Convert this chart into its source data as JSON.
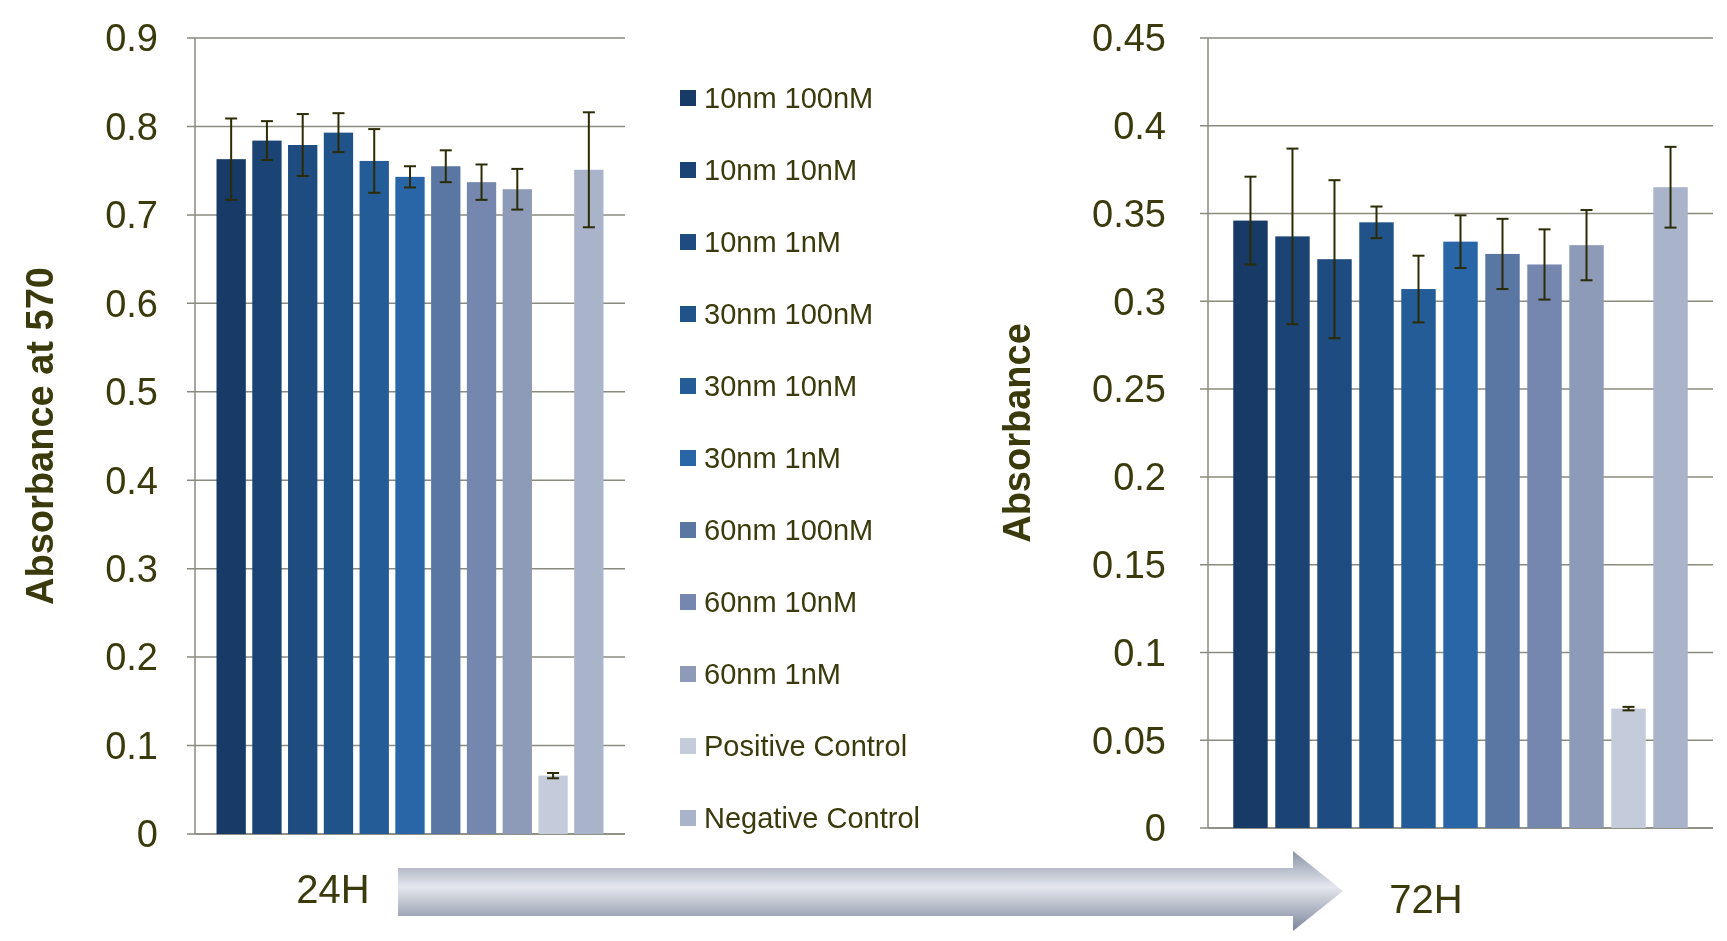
{
  "chart_data": [
    {
      "type": "bar",
      "ylabel": "Absorbance at 570",
      "xlabel": "24H",
      "categories": [
        null
      ],
      "ylim": [
        0,
        0.9
      ],
      "yticks": [
        0,
        0.1,
        0.2,
        0.3,
        0.4,
        0.5,
        0.6,
        0.7,
        0.8,
        0.9
      ],
      "grid": "y",
      "legend": "right",
      "series": [
        {
          "name": "10nm 100nM",
          "color": "#173b66",
          "values": [
            0.763
          ],
          "errors": [
            0.046
          ]
        },
        {
          "name": "10nm 10nM",
          "color": "#1b4474",
          "values": [
            0.784
          ],
          "errors": [
            0.022
          ]
        },
        {
          "name": "10nm 1nM",
          "color": "#1e4b80",
          "values": [
            0.779
          ],
          "errors": [
            0.035
          ]
        },
        {
          "name": "30nm 100nM",
          "color": "#21538b",
          "values": [
            0.793
          ],
          "errors": [
            0.022
          ]
        },
        {
          "name": "30nm 10nM",
          "color": "#245c98",
          "values": [
            0.761
          ],
          "errors": [
            0.036
          ]
        },
        {
          "name": "30nm 1nM",
          "color": "#2966a8",
          "values": [
            0.743
          ],
          "errors": [
            0.012
          ]
        },
        {
          "name": "60nm 100nM",
          "color": "#5a77a3",
          "values": [
            0.755
          ],
          "errors": [
            0.018
          ]
        },
        {
          "name": "60nm 10nM",
          "color": "#7587af",
          "values": [
            0.737
          ],
          "errors": [
            0.02
          ]
        },
        {
          "name": "60nm 1nM",
          "color": "#8d9bb9",
          "values": [
            0.729
          ],
          "errors": [
            0.023
          ]
        },
        {
          "name": "Positive Control",
          "color": "#c4cbdb",
          "values": [
            0.066
          ],
          "errors": [
            0.003
          ]
        },
        {
          "name": "Negative Control",
          "color": "#a9b3c9",
          "values": [
            0.751
          ],
          "errors": [
            0.065
          ]
        }
      ]
    },
    {
      "type": "bar",
      "ylabel": "Absorbance",
      "xlabel": "72H",
      "categories": [
        null
      ],
      "ylim": [
        0,
        0.45
      ],
      "yticks": [
        0,
        0.05,
        0.1,
        0.15,
        0.2,
        0.25,
        0.3,
        0.35,
        0.4,
        0.45
      ],
      "grid": "y",
      "series": [
        {
          "color": "#173b66",
          "values": [
            0.346
          ],
          "errors": [
            0.025
          ]
        },
        {
          "color": "#1b4474",
          "values": [
            0.337
          ],
          "errors": [
            0.05
          ]
        },
        {
          "color": "#1e4b80",
          "values": [
            0.324
          ],
          "errors": [
            0.045
          ]
        },
        {
          "color": "#21538b",
          "values": [
            0.345
          ],
          "errors": [
            0.009
          ]
        },
        {
          "color": "#245c98",
          "values": [
            0.307
          ],
          "errors": [
            0.019
          ]
        },
        {
          "color": "#2966a8",
          "values": [
            0.334
          ],
          "errors": [
            0.015
          ]
        },
        {
          "color": "#5a77a3",
          "values": [
            0.327
          ],
          "errors": [
            0.02
          ]
        },
        {
          "color": "#7587af",
          "values": [
            0.321
          ],
          "errors": [
            0.02
          ]
        },
        {
          "color": "#8d9bb9",
          "values": [
            0.332
          ],
          "errors": [
            0.02
          ]
        },
        {
          "color": "#c4cbdb",
          "values": [
            0.068
          ],
          "errors": [
            0.001
          ]
        },
        {
          "color": "#a9b3c9",
          "values": [
            0.365
          ],
          "errors": [
            0.023
          ]
        }
      ]
    }
  ]
}
